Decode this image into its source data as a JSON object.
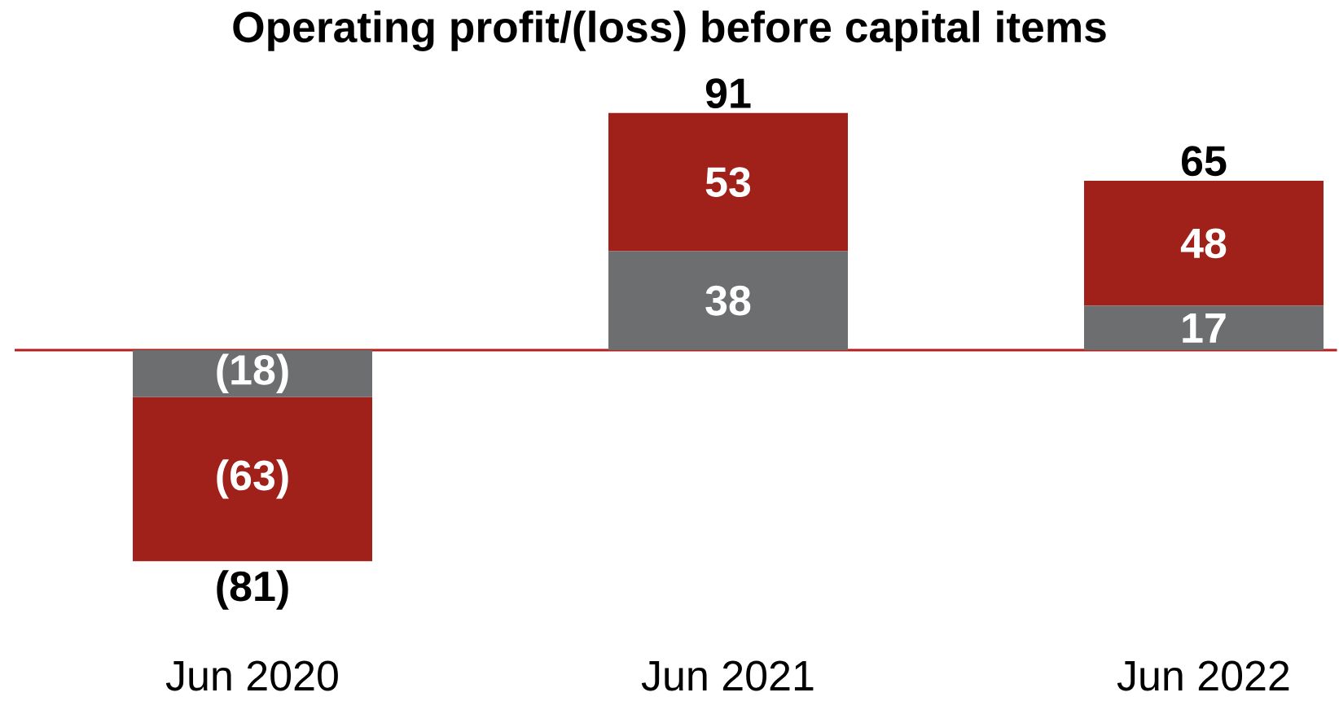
{
  "chart_data": {
    "type": "bar",
    "stacked": true,
    "title": "Operating profit/(loss) before capital items",
    "categories": [
      "Jun 2020",
      "Jun 2021",
      "Jun 2022"
    ],
    "series": [
      {
        "color": "#6d6e70",
        "values": [
          -18,
          38,
          17
        ],
        "value_labels": [
          "(18)",
          "38",
          "17"
        ]
      },
      {
        "color": "#a0201a",
        "values": [
          -63,
          53,
          48
        ],
        "value_labels": [
          "(63)",
          "53",
          "48"
        ]
      }
    ],
    "totals": [
      "(81)",
      "91",
      "65"
    ],
    "ref_lines": [
      {
        "axis": "y",
        "value": 0,
        "color": "#b41e1e"
      }
    ]
  }
}
